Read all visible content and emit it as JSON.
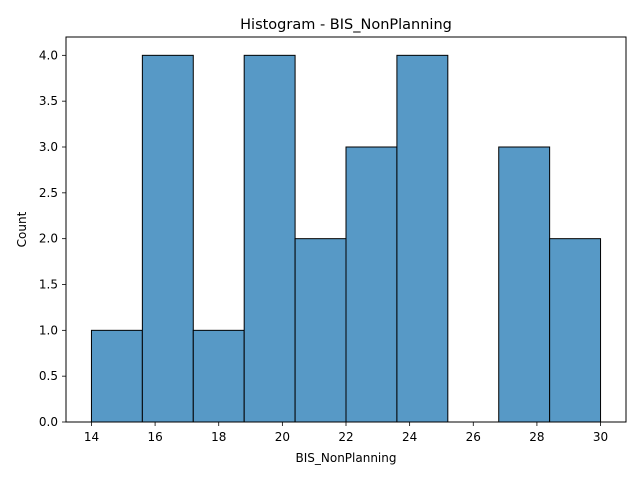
{
  "chart_data": {
    "type": "bar",
    "title": "Histogram - BIS_NonPlanning",
    "xlabel": "BIS_NonPlanning",
    "ylabel": "Count",
    "bin_edges": [
      14.0,
      15.6,
      17.2,
      18.8,
      20.4,
      22.0,
      23.6,
      25.2,
      26.8,
      28.4,
      30.0
    ],
    "counts": [
      1,
      4,
      1,
      4,
      2,
      3,
      4,
      0,
      3,
      2
    ],
    "xlim": [
      13.2,
      30.8
    ],
    "ylim": [
      0,
      4.2
    ],
    "xticks": [
      14,
      16,
      18,
      20,
      22,
      24,
      26,
      28,
      30
    ],
    "xtick_labels": [
      "14",
      "16",
      "18",
      "20",
      "22",
      "24",
      "26",
      "28",
      "30"
    ],
    "yticks": [
      0,
      0.5,
      1.0,
      1.5,
      2.0,
      2.5,
      3.0,
      3.5,
      4.0
    ],
    "ytick_labels": [
      "0.0",
      "0.5",
      "1.0",
      "1.5",
      "2.0",
      "2.5",
      "3.0",
      "3.5",
      "4.0"
    ],
    "grid": false,
    "bar_color": "#5799c6",
    "edge_color": "#000000"
  }
}
